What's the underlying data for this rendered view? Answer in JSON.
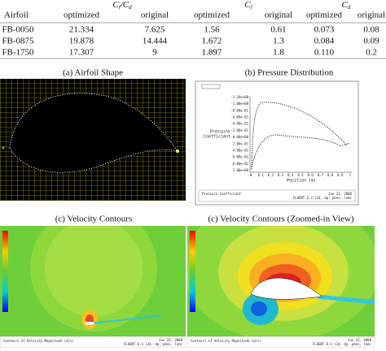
{
  "table": {
    "airfoil_header": "Airfoil",
    "groups": [
      [
        "C",
        "l",
        "/C",
        "d"
      ],
      [
        "C",
        "l"
      ],
      [
        "C",
        "d"
      ]
    ],
    "subheaders": [
      "optimized",
      "original",
      "optimized",
      "original",
      "optimized",
      "original"
    ],
    "rows": [
      [
        "FB-0050",
        "21.334",
        "7.625",
        "1.56",
        "0.61",
        "0.073",
        "0.08"
      ],
      [
        "FB-0875",
        "19.878",
        "14.444",
        "1.672",
        "1.3",
        "0.084",
        "0.09"
      ],
      [
        "FB-1750",
        "17.307",
        "9",
        "1.897",
        "1.8",
        "0.110",
        "0.2"
      ]
    ]
  },
  "panels": {
    "a": {
      "caption": "(a) Airfoil Shape"
    },
    "b": {
      "caption": "(b) Pressure Distribution",
      "y_axis_label": [
        "Pressure",
        "Coefficient"
      ],
      "x_axis_label": "Position (m)",
      "yticks": [
        "-1.20e+00",
        "-1.00e+00",
        "-8.00e-01",
        "-6.00e-01",
        "-4.00e-01",
        "-2.00e-01",
        "0.00e+00",
        "2.00e-01",
        "4.00e-01",
        "6.00e-01",
        "8.00e-01",
        "1.00e+00"
      ],
      "xticks": [
        "0",
        "0.1",
        "0.2",
        "0.3",
        "0.4",
        "0.5",
        "0.6",
        "0.7",
        "0.8",
        "0.9",
        "1"
      ],
      "footer": "Pressure Coefficient"
    },
    "c": {
      "caption": "(c) Velocity Contours"
    },
    "d": {
      "caption": "(c) Velocity Contours (Zoomed-in View)"
    },
    "footer_title": "Contours of Velocity Magnitude (m/s)",
    "footer_date": "Jun 23, 2008",
    "footer_solver": "FLUENT 6.3 (2d, dp, pbns, lam)"
  }
}
